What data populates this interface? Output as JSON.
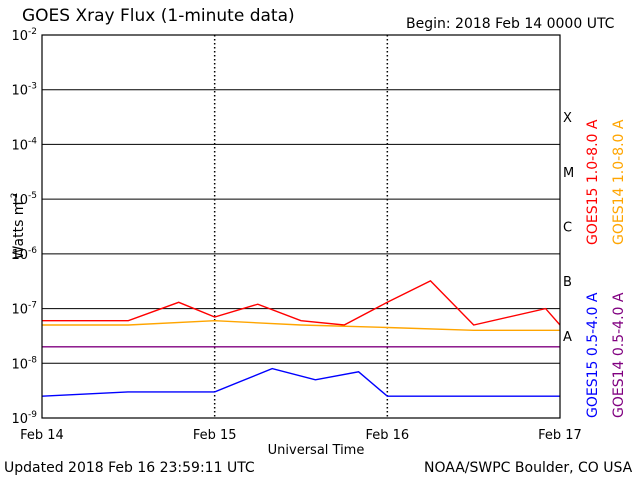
{
  "header": {
    "title": "GOES Xray Flux (1-minute data)",
    "begin": "Begin:  2018 Feb 14 0000 UTC"
  },
  "footer": {
    "updated": "Updated 2018 Feb 16 23:59:11 UTC",
    "credit": "NOAA/SWPC Boulder, CO USA"
  },
  "colors": {
    "goes15_long": "#ff0000",
    "goes14_long": "#ffa500",
    "goes15_short": "#0000ff",
    "goes14_short": "#800080"
  },
  "chart_data": {
    "type": "line",
    "xlabel": "Universal Time",
    "ylabel": "Watts m",
    "ylabel_superscript": "-2",
    "yscale": "log",
    "ylim": [
      1e-09,
      0.01
    ],
    "yticks": [
      {
        "base": "10",
        "exp": "-2",
        "value": 0.01
      },
      {
        "base": "10",
        "exp": "-3",
        "value": 0.001
      },
      {
        "base": "10",
        "exp": "-4",
        "value": 0.0001
      },
      {
        "base": "10",
        "exp": "-5",
        "value": 1e-05
      },
      {
        "base": "10",
        "exp": "-6",
        "value": 1e-06
      },
      {
        "base": "10",
        "exp": "-7",
        "value": 1e-07
      },
      {
        "base": "10",
        "exp": "-8",
        "value": 1e-08
      },
      {
        "base": "10",
        "exp": "-9",
        "value": 1e-09
      }
    ],
    "xlim": [
      "2018-02-14 00:00",
      "2018-02-17 00:00"
    ],
    "xticks": [
      {
        "label": "Feb 14",
        "value": "2018-02-14"
      },
      {
        "label": "Feb 15",
        "value": "2018-02-15"
      },
      {
        "label": "Feb 16",
        "value": "2018-02-16"
      },
      {
        "label": "Feb 17",
        "value": "2018-02-17"
      }
    ],
    "flare_classes": [
      {
        "label": "X",
        "value": 0.0001
      },
      {
        "label": "M",
        "value": 1e-05
      },
      {
        "label": "C",
        "value": 1e-06
      },
      {
        "label": "B",
        "value": 1e-07
      },
      {
        "label": "A",
        "value": 1e-08
      }
    ],
    "series": [
      {
        "name": "GOES15 1.0-8.0 A",
        "color": "#ff0000",
        "x": [
          "2018-02-14 00:00",
          "2018-02-14 12:00",
          "2018-02-14 19:00",
          "2018-02-15 00:00",
          "2018-02-15 06:00",
          "2018-02-15 12:00",
          "2018-02-15 18:00",
          "2018-02-16 00:00",
          "2018-02-16 06:00",
          "2018-02-16 12:00",
          "2018-02-16 22:00",
          "2018-02-17 00:00"
        ],
        "y": [
          6e-08,
          6e-08,
          1.3e-07,
          7e-08,
          1.2e-07,
          6e-08,
          5e-08,
          1.3e-07,
          3.2e-07,
          5e-08,
          1e-07,
          5e-08
        ]
      },
      {
        "name": "GOES14 1.0-8.0 A",
        "color": "#ffa500",
        "x": [
          "2018-02-14 00:00",
          "2018-02-14 12:00",
          "2018-02-15 00:00",
          "2018-02-15 12:00",
          "2018-02-16 00:00",
          "2018-02-16 12:00",
          "2018-02-17 00:00"
        ],
        "y": [
          5e-08,
          5e-08,
          6e-08,
          5e-08,
          4.5e-08,
          4e-08,
          4e-08
        ]
      },
      {
        "name": "GOES15 0.5-4.0 A",
        "color": "#0000ff",
        "x": [
          "2018-02-14 00:00",
          "2018-02-14 12:00",
          "2018-02-15 00:00",
          "2018-02-15 08:00",
          "2018-02-15 14:00",
          "2018-02-15 20:00",
          "2018-02-16 00:00",
          "2018-02-16 12:00",
          "2018-02-17 00:00"
        ],
        "y": [
          2.5e-09,
          3e-09,
          3e-09,
          8e-09,
          5e-09,
          7e-09,
          2.5e-09,
          2.5e-09,
          2.5e-09
        ]
      },
      {
        "name": "GOES14 0.5-4.0 A",
        "color": "#800080",
        "x": [
          "2018-02-14 00:00",
          "2018-02-15 00:00",
          "2018-02-16 00:00",
          "2018-02-17 00:00"
        ],
        "y": [
          2e-08,
          2e-08,
          2e-08,
          2e-08
        ]
      }
    ]
  }
}
